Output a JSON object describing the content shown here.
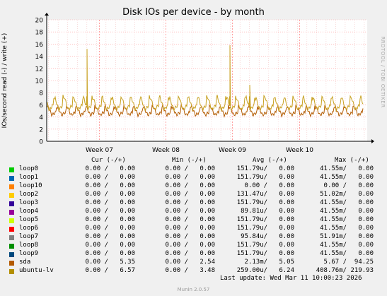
{
  "title": "Disk IOs per device - by month",
  "ylabel": "IOs/second read (-) / write (+)",
  "side_label": "RRDTOOL / TOBI OETIKER",
  "colors": {
    "read_line": "#c8a020",
    "write_line": "#b07010",
    "grid": "#ff9999",
    "axis": "#000000",
    "plot_bg": "#ffffff"
  },
  "chart_data": {
    "type": "line",
    "title": "Disk IOs per device - by month",
    "ylabel": "IOs/second read (-) / write (+)",
    "xlabel": "",
    "ylim": [
      0,
      20
    ],
    "yticks": [
      0,
      2,
      4,
      6,
      8,
      10,
      12,
      14,
      16,
      18,
      20
    ],
    "x_ticks": [
      "Week 07",
      "Week 08",
      "Week 09",
      "Week 10"
    ],
    "grid": true,
    "series": [
      {
        "name": "sda",
        "color": "#b35a00",
        "pattern_low": 4.3,
        "pattern_high": 5.8,
        "spikes": []
      },
      {
        "name": "ubuntu-lv",
        "color": "#c8a020",
        "pattern_low": 5.2,
        "pattern_high": 7.4,
        "spikes": [
          15.2,
          15.8,
          9.3
        ]
      }
    ]
  },
  "legend": {
    "headers": {
      "cur": "Cur (-/+)",
      "min": "Min (-/+)",
      "avg": "Avg (-/+)",
      "max": "Max (-/+)"
    },
    "rows": [
      {
        "name": "loop0",
        "color": "#00cc00",
        "cur": "0.00 /   0.00",
        "min": "0.00 /   0.00",
        "avg": "151.79u/   0.00",
        "max": "41.55m/   0.00"
      },
      {
        "name": "loop1",
        "color": "#0066b3",
        "cur": "0.00 /   0.00",
        "min": "0.00 /   0.00",
        "avg": "151.79u/   0.00",
        "max": "41.55m/   0.00"
      },
      {
        "name": "loop10",
        "color": "#ff8000",
        "cur": "0.00 /   0.00",
        "min": "0.00 /   0.00",
        "avg": "0.00 /   0.00",
        "max": "0.00 /   0.00"
      },
      {
        "name": "loop2",
        "color": "#ffcc00",
        "cur": "0.00 /   0.00",
        "min": "0.00 /   0.00",
        "avg": "131.47u/   0.00",
        "max": "51.02m/   0.00"
      },
      {
        "name": "loop3",
        "color": "#330099",
        "cur": "0.00 /   0.00",
        "min": "0.00 /   0.00",
        "avg": "151.79u/   0.00",
        "max": "41.55m/   0.00"
      },
      {
        "name": "loop4",
        "color": "#990099",
        "cur": "0.00 /   0.00",
        "min": "0.00 /   0.00",
        "avg": "89.81u/   0.00",
        "max": "41.55m/   0.00"
      },
      {
        "name": "loop5",
        "color": "#ccff00",
        "cur": "0.00 /   0.00",
        "min": "0.00 /   0.00",
        "avg": "151.79u/   0.00",
        "max": "41.55m/   0.00"
      },
      {
        "name": "loop6",
        "color": "#ff0000",
        "cur": "0.00 /   0.00",
        "min": "0.00 /   0.00",
        "avg": "151.79u/   0.00",
        "max": "41.55m/   0.00"
      },
      {
        "name": "loop7",
        "color": "#808080",
        "cur": "0.00 /   0.00",
        "min": "0.00 /   0.00",
        "avg": "95.84u/   0.00",
        "max": "51.91m/   0.00"
      },
      {
        "name": "loop8",
        "color": "#008f00",
        "cur": "0.00 /   0.00",
        "min": "0.00 /   0.00",
        "avg": "151.79u/   0.00",
        "max": "41.55m/   0.00"
      },
      {
        "name": "loop9",
        "color": "#00487d",
        "cur": "0.00 /   0.00",
        "min": "0.00 /   0.00",
        "avg": "151.79u/   0.00",
        "max": "41.55m/   0.00"
      },
      {
        "name": "sda",
        "color": "#b35a00",
        "cur": "0.00 /   5.35",
        "min": "0.00 /   2.54",
        "avg": "2.13m/   5.05",
        "max": "5.67 /  94.25"
      },
      {
        "name": "ubuntu-lv",
        "color": "#b38f00",
        "cur": "0.00 /   6.57",
        "min": "0.00 /   3.48",
        "avg": "259.00u/   6.24",
        "max": "408.76m/ 219.93"
      }
    ]
  },
  "last_update": "Last update: Wed Mar 11 10:00:23 2026",
  "munin_version": "Munin 2.0.57"
}
